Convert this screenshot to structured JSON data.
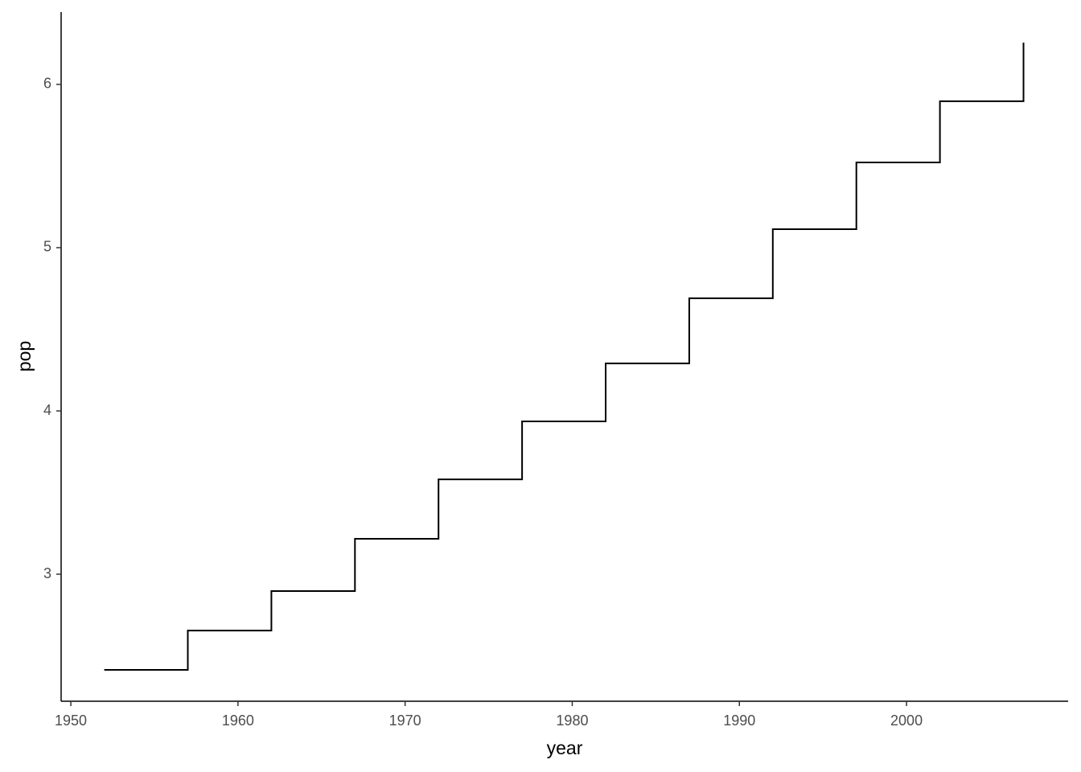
{
  "chart_data": {
    "type": "line",
    "step": "hv",
    "x_label": "year",
    "y_label": "pop",
    "x": [
      1952,
      1957,
      1962,
      1967,
      1972,
      1977,
      1982,
      1987,
      1992,
      1997,
      2002,
      2007
    ],
    "values": [
      2.414,
      2.655,
      2.897,
      3.217,
      3.581,
      3.936,
      4.291,
      4.69,
      5.113,
      5.522,
      5.897,
      6.256
    ],
    "color": "#000000",
    "xlim": [
      1949.42,
      2009.67
    ],
    "xticks": [
      1950,
      1960,
      1970,
      1980,
      1990,
      2000
    ],
    "ylim": [
      2.222,
      6.443
    ],
    "yticks": [
      3,
      4,
      5,
      6
    ],
    "grid": false
  }
}
